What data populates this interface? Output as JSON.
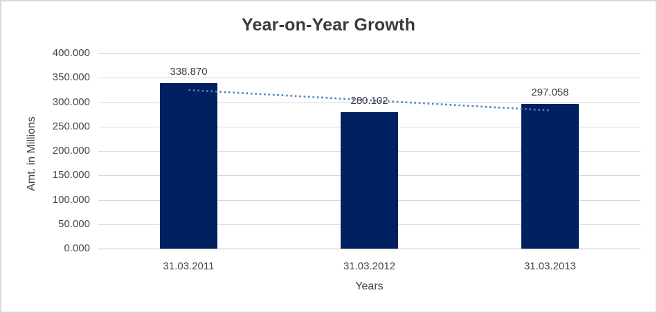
{
  "window": {
    "background": "#ffffff",
    "border_color": "#d9d9d9"
  },
  "chart_data": {
    "type": "bar",
    "title": "Year-on-Year Growth",
    "categories": [
      "31.03.2011",
      "31.03.2012",
      "31.03.2013"
    ],
    "values": [
      338.87,
      280.102,
      297.058
    ],
    "data_labels": [
      "338.870",
      "280.102",
      "297.058"
    ],
    "xlabel": "Years",
    "ylabel": "Amt. in Millions",
    "ylim": [
      0,
      400
    ],
    "ytick_step": 50,
    "ytick_labels": [
      "0.000",
      "50.000",
      "100.000",
      "150.000",
      "200.000",
      "250.000",
      "300.000",
      "350.000",
      "400.000"
    ],
    "grid": true,
    "legend": "none",
    "trendline": {
      "type": "linear",
      "style": "dotted",
      "color": "#4e82c4"
    },
    "colors": {
      "bar": "#002060",
      "gridline": "#d9d9d9",
      "axis_line": "#bfbfbf",
      "label_text": "#404040",
      "tick_text": "#474747",
      "title_text": "#3a3a3a"
    }
  }
}
